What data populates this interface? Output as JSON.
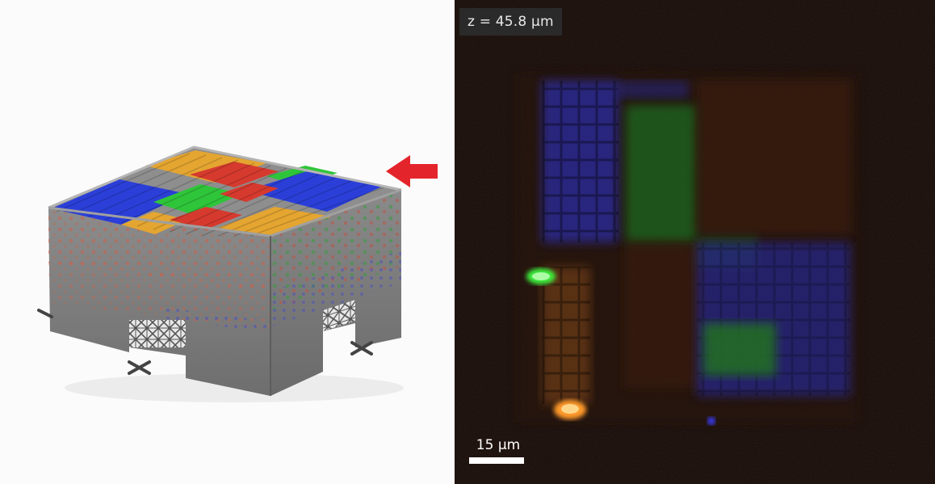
{
  "micrograph": {
    "z_label": "z = 45.8 µm",
    "scale_bar_label": "15 µm"
  },
  "colors": {
    "blue": "#2b3fd8",
    "green": "#2fc53a",
    "red": "#d63a2e",
    "orange": "#e4a531",
    "arrow": "#e4242b",
    "block_gray": "#7d7d7d"
  },
  "icons": [
    "red-arrow-icon"
  ]
}
